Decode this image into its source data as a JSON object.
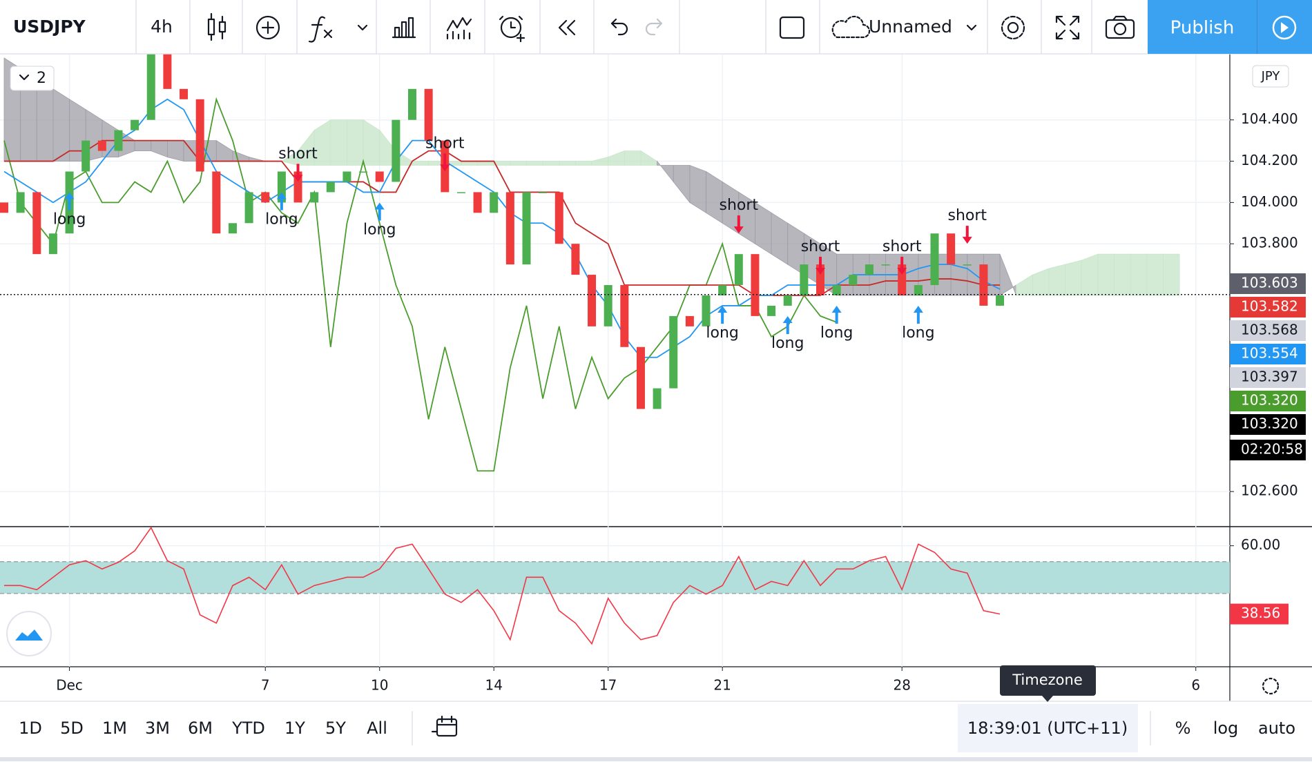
{
  "toolbar": {
    "symbol": "USDJPY",
    "interval": "4h",
    "layout_name": "Unnamed",
    "publish": "Publish"
  },
  "chart": {
    "currency": "JPY",
    "indicator_count": "2",
    "ylim": [
      102.43,
      104.72
    ],
    "yticks": [
      {
        "value": 104.4,
        "label": "104.400"
      },
      {
        "value": 104.2,
        "label": "104.200"
      },
      {
        "value": 104,
        "label": "104.000"
      },
      {
        "value": 103.8,
        "label": "103.800"
      },
      {
        "value": 102.6,
        "label": "102.600"
      }
    ],
    "grid": true,
    "x_labels": [
      {
        "label": "Dec",
        "index": 4
      },
      {
        "label": "7",
        "index": 16
      },
      {
        "label": "10",
        "index": 23
      },
      {
        "label": "14",
        "index": 30
      },
      {
        "label": "17",
        "index": 37
      },
      {
        "label": "21",
        "index": 44
      },
      {
        "label": "28",
        "index": 55
      },
      {
        "label": "6",
        "index": 73
      }
    ],
    "candles": {
      "first_open": 104.0,
      "up_color": "#4caf50",
      "down_color": "#ef3b3b",
      "closes": [
        103.95,
        104.05,
        103.75,
        103.85,
        104.15,
        104.3,
        104.25,
        104.35,
        104.4,
        104.75,
        104.55,
        104.5,
        104.15,
        103.85,
        103.9,
        104.05,
        104.0,
        104.15,
        104.0,
        104.05,
        104.1,
        104.15,
        104.15,
        104.1,
        104.4,
        104.55,
        104.3,
        104.05,
        104.05,
        103.95,
        104.05,
        103.7,
        104.05,
        104.05,
        103.8,
        103.65,
        103.4,
        103.6,
        103.3,
        103.0,
        103.1,
        103.45,
        103.4,
        103.55,
        103.6,
        103.75,
        103.45,
        103.5,
        103.55,
        103.7,
        103.55,
        103.6,
        103.65,
        103.7,
        103.7,
        103.55,
        103.6,
        103.85,
        103.7,
        103.7,
        103.5,
        103.55
      ]
    },
    "ichimoku": {
      "conversion": {
        "color": "#2196f3",
        "values": [
          104.15,
          104.1,
          104.05,
          104.0,
          104.05,
          104.1,
          104.2,
          104.3,
          104.35,
          104.45,
          104.5,
          104.45,
          104.3,
          104.15,
          104.1,
          104.05,
          104.0,
          104.05,
          104.1,
          104.1,
          104.1,
          104.1,
          104.05,
          104.05,
          104.2,
          104.3,
          104.3,
          104.2,
          104.15,
          104.1,
          104.05,
          103.95,
          103.9,
          103.9,
          103.85,
          103.75,
          103.6,
          103.5,
          103.35,
          103.25,
          103.25,
          103.3,
          103.35,
          103.45,
          103.5,
          103.5,
          103.55,
          103.55,
          103.6,
          103.6,
          103.6,
          103.6,
          103.65,
          103.65,
          103.65,
          103.65,
          103.68,
          103.7,
          103.7,
          103.68,
          103.62,
          103.58
        ]
      },
      "base": {
        "color": "#c62828",
        "values": [
          104.2,
          104.2,
          104.2,
          104.2,
          104.25,
          104.25,
          104.3,
          104.3,
          104.3,
          104.3,
          104.3,
          104.3,
          104.2,
          104.2,
          104.2,
          104.2,
          104.2,
          104.2,
          104.1,
          104.1,
          104.1,
          104.1,
          104.1,
          104.05,
          104.05,
          104.2,
          104.25,
          104.25,
          104.2,
          104.2,
          104.2,
          104.05,
          104.05,
          104.05,
          104.05,
          103.9,
          103.85,
          103.8,
          103.6,
          103.6,
          103.6,
          103.6,
          103.6,
          103.6,
          103.6,
          103.6,
          103.55,
          103.55,
          103.55,
          103.55,
          103.55,
          103.6,
          103.6,
          103.6,
          103.62,
          103.62,
          103.62,
          103.63,
          103.63,
          103.62,
          103.6,
          103.6
        ]
      },
      "lagging": {
        "color": "#4a9c2d",
        "values": [
          104.3,
          104.0,
          103.9,
          103.8,
          104.1,
          104.15,
          104.0,
          104.0,
          104.1,
          104.05,
          104.2,
          104.0,
          104.1,
          104.5,
          104.3,
          104.0,
          104.05,
          103.95,
          103.9,
          104.05,
          103.3,
          103.9,
          104.2,
          103.9,
          103.6,
          103.4,
          102.95,
          103.3,
          103.0,
          102.7,
          102.7,
          103.2,
          103.5,
          103.05,
          103.4,
          103.0,
          103.25,
          103.05,
          103.15,
          103.2,
          103.3,
          103.4,
          103.6,
          103.6,
          103.8,
          103.5,
          103.5,
          103.35,
          103.4,
          103.55,
          103.45,
          103.42,
          null,
          null,
          null,
          null,
          null,
          null,
          null,
          null,
          null,
          null
        ]
      },
      "cloud": {
        "up_color": "#c8e6c9",
        "down_color": "#9e9ea6",
        "span_a": [
          104.2,
          104.2,
          104.2,
          104.2,
          104.2,
          104.2,
          104.22,
          104.22,
          104.25,
          104.25,
          104.22,
          104.2,
          104.2,
          104.2,
          104.2,
          104.2,
          104.2,
          104.2,
          104.25,
          104.35,
          104.4,
          104.4,
          104.4,
          104.35,
          104.25,
          104.2,
          104.2,
          104.2,
          104.2,
          104.2,
          104.2,
          104.2,
          104.2,
          104.2,
          104.2,
          104.2,
          104.2,
          104.22,
          104.25,
          104.25,
          104.2,
          104.1,
          104.0,
          103.95,
          103.9,
          103.85,
          103.8,
          103.75,
          103.7,
          103.65,
          103.6,
          103.55,
          103.55,
          103.55,
          103.55,
          103.55,
          103.55,
          103.55,
          103.55,
          103.55,
          103.55,
          103.55,
          103.6,
          103.65,
          103.68,
          103.7,
          103.72,
          103.75,
          103.75,
          103.75,
          103.75,
          103.75,
          103.75
        ],
        "span_b": [
          104.7,
          104.65,
          104.6,
          104.55,
          104.5,
          104.45,
          104.4,
          104.35,
          104.3,
          104.3,
          104.3,
          104.3,
          104.3,
          104.3,
          104.25,
          104.22,
          104.2,
          104.2,
          104.18,
          104.18,
          104.18,
          104.18,
          104.18,
          104.18,
          104.18,
          104.18,
          104.18,
          104.18,
          104.18,
          104.18,
          104.18,
          104.18,
          104.18,
          104.18,
          104.18,
          104.18,
          104.18,
          104.18,
          104.18,
          104.18,
          104.18,
          104.18,
          104.18,
          104.15,
          104.1,
          104.05,
          104.0,
          103.95,
          103.9,
          103.85,
          103.8,
          103.75,
          103.75,
          103.75,
          103.75,
          103.75,
          103.75,
          103.75,
          103.75,
          103.75,
          103.75,
          103.75,
          103.55,
          103.55,
          103.55,
          103.55,
          103.55,
          103.55,
          103.55,
          103.55,
          103.55,
          103.55,
          103.55
        ]
      }
    },
    "signals": [
      {
        "label": "long",
        "index": 4
      },
      {
        "label": "long",
        "index": 17
      },
      {
        "label": "short",
        "index": 18
      },
      {
        "label": "long",
        "index": 23
      },
      {
        "label": "short",
        "index": 27
      },
      {
        "label": "long",
        "index": 44
      },
      {
        "label": "short",
        "index": 45
      },
      {
        "label": "long",
        "index": 48
      },
      {
        "label": "short",
        "index": 50
      },
      {
        "label": "long",
        "index": 51
      },
      {
        "label": "short",
        "index": 55
      },
      {
        "label": "long",
        "index": 56
      },
      {
        "label": "short",
        "index": 59
      }
    ],
    "price_labels": [
      {
        "value": 103.603,
        "label": "103.603",
        "color": "#5d606b"
      },
      {
        "value": 103.582,
        "label": "103.582",
        "color": "#e53935"
      },
      {
        "value": 103.568,
        "label": "103.568",
        "color": "#d1d4dc"
      },
      {
        "value": 103.554,
        "label": "103.554",
        "color": "#2196f3",
        "line": "dotted"
      },
      {
        "value": 103.397,
        "label": "103.397",
        "color": "#d1d4dc"
      },
      {
        "value": 103.32,
        "label": "103.320",
        "color": "#4a9c2d"
      },
      {
        "value": 103.32,
        "label": "103.320",
        "color": "#000000"
      }
    ],
    "countdown": "02:20:58"
  },
  "rsi": {
    "ylim": [
      22,
      66
    ],
    "yticks": [
      {
        "value": 60,
        "label": "60.00"
      }
    ],
    "band": [
      45,
      55
    ],
    "color": "#f23645",
    "values": [
      47.5,
      47.5,
      46.2,
      50.1,
      54.0,
      55.3,
      52.7,
      54.8,
      58.4,
      65.7,
      55.3,
      52.7,
      38.3,
      35.7,
      47.5,
      50.1,
      46.2,
      54.0,
      44.8,
      47.5,
      48.8,
      50.1,
      50.1,
      52.7,
      59.2,
      60.5,
      52.7,
      44.8,
      42.2,
      46.2,
      39.6,
      30.5,
      50.1,
      50.1,
      39.6,
      35.7,
      29.2,
      43.5,
      35.7,
      30.5,
      31.8,
      42.2,
      47.5,
      44.8,
      47.5,
      56.6,
      46.2,
      48.8,
      47.5,
      55.3,
      47.5,
      52.7,
      52.7,
      55.3,
      56.6,
      46.2,
      60.5,
      57.9,
      52.7,
      51.4,
      39.6,
      38.56
    ],
    "last": {
      "value": 38.56,
      "label": "38.56"
    }
  },
  "tooltip": "Timezone",
  "range_bar": {
    "ranges": [
      "1D",
      "5D",
      "1M",
      "3M",
      "6M",
      "YTD",
      "1Y",
      "5Y",
      "All"
    ],
    "clock": "18:39:01 (UTC+11)",
    "scale_options": [
      "%",
      "log",
      "auto"
    ]
  }
}
